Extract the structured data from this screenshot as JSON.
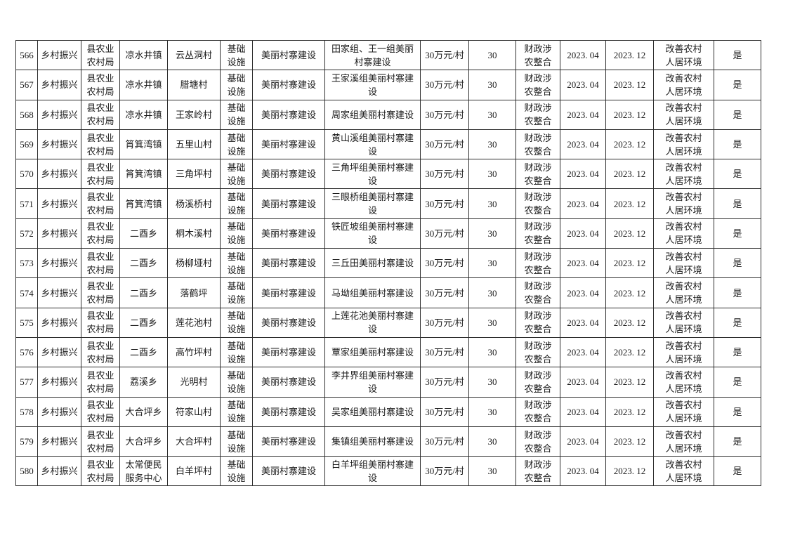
{
  "document": {
    "type": "project-table-page",
    "rows_range": "566-580",
    "border_color": "#2e2e2e",
    "background_color": "#ffffff"
  },
  "table": {
    "column_keys": [
      "no",
      "strategy",
      "org",
      "town",
      "village",
      "category",
      "project",
      "desc",
      "amount",
      "qty",
      "fund",
      "start",
      "end",
      "goal",
      "flag"
    ],
    "common": {
      "strategy": "乡村振兴",
      "org": "县农业\n农村局",
      "category": "基础\n设施",
      "project": "美丽村寨建设",
      "amount": "30万元/村",
      "qty": "30",
      "fund": "财政涉\n农整合",
      "start": "2023. 04",
      "end": "2023. 12",
      "goal": "改善农村\n人居环境",
      "flag": "是"
    },
    "rows": [
      {
        "no": "566",
        "town": "凉水井镇",
        "village": "云丛洞村",
        "desc": "田家组、王一组美丽\n村寨建设"
      },
      {
        "no": "567",
        "town": "凉水井镇",
        "village": "腊塘村",
        "desc": "王家溪组美丽村寨建\n设"
      },
      {
        "no": "568",
        "town": "凉水井镇",
        "village": "王家岭村",
        "desc": "周家组美丽村寨建设"
      },
      {
        "no": "569",
        "town": "筲箕湾镇",
        "village": "五里山村",
        "desc": "黄山溪组美丽村寨建\n设"
      },
      {
        "no": "570",
        "town": "筲箕湾镇",
        "village": "三角坪村",
        "desc": "三角坪组美丽村寨建\n设"
      },
      {
        "no": "571",
        "town": "筲箕湾镇",
        "village": "杨溪桥村",
        "desc": "三眼桥组美丽村寨建\n设"
      },
      {
        "no": "572",
        "town": "二酉乡",
        "village": "桐木溪村",
        "desc": "铁匠坡组美丽村寨建\n设"
      },
      {
        "no": "573",
        "town": "二酉乡",
        "village": "杨柳垭村",
        "desc": "三丘田美丽村寨建设"
      },
      {
        "no": "574",
        "town": "二酉乡",
        "village": "落鹤坪",
        "desc": "马坳组美丽村寨建设"
      },
      {
        "no": "575",
        "town": "二酉乡",
        "village": "莲花池村",
        "desc": "上莲花池美丽村寨建\n设"
      },
      {
        "no": "576",
        "town": "二酉乡",
        "village": "高竹坪村",
        "desc": "覃家组美丽村寨建设"
      },
      {
        "no": "577",
        "town": "荔溪乡",
        "village": "光明村",
        "desc": "李井界组美丽村寨建\n设"
      },
      {
        "no": "578",
        "town": "大合坪乡",
        "village": "符家山村",
        "desc": "吴家组美丽村寨建设"
      },
      {
        "no": "579",
        "town": "大合坪乡",
        "village": "大合坪村",
        "desc": "集镇组美丽村寨建设"
      },
      {
        "no": "580",
        "town": "太常便民\n服务中心",
        "village": "白羊坪村",
        "desc": "白羊坪组美丽村寨建\n设"
      }
    ]
  }
}
